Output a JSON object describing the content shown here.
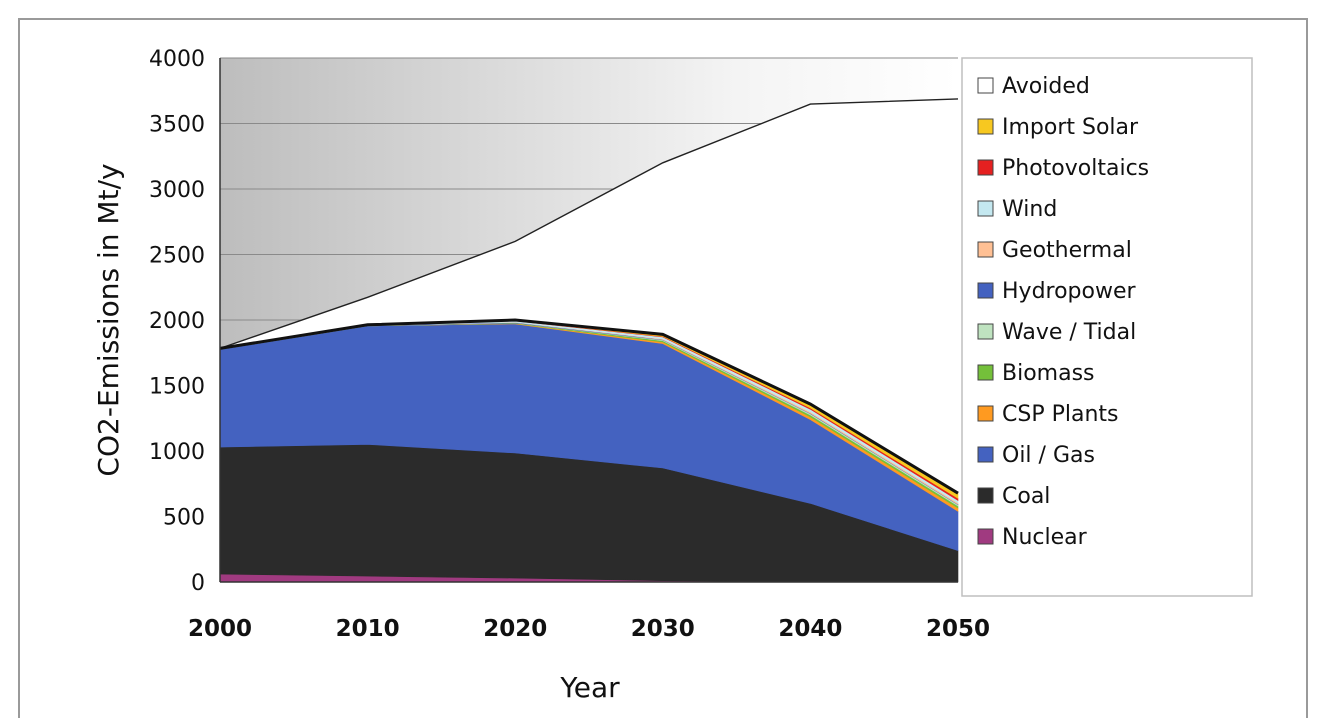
{
  "chart_data": {
    "type": "area",
    "title": "",
    "xlabel": "Year",
    "ylabel": "CO2-Emissions in Mt/y",
    "x": [
      2000,
      2010,
      2020,
      2030,
      2040,
      2050
    ],
    "xlim": [
      2000,
      2050
    ],
    "ylim": [
      0,
      4000
    ],
    "y_ticks": [
      0,
      500,
      1000,
      1500,
      2000,
      2500,
      3000,
      3500,
      4000
    ],
    "grid": true,
    "legend_position": "right",
    "stacked": true,
    "series": [
      {
        "name": "Nuclear",
        "color": "#a03a80",
        "values": [
          60,
          45,
          30,
          10,
          0,
          0
        ]
      },
      {
        "name": "Coal",
        "color": "#2b2b2b",
        "values": [
          970,
          1005,
          955,
          860,
          600,
          240
        ]
      },
      {
        "name": "Oil / Gas",
        "color": "#4462c0",
        "values": [
          745,
          905,
          985,
          950,
          640,
          300
        ]
      },
      {
        "name": "CSP Plants",
        "color": "#ff9a20",
        "values": [
          0,
          0,
          3,
          12,
          20,
          25
        ]
      },
      {
        "name": "Biomass",
        "color": "#74c03a",
        "values": [
          0,
          0,
          3,
          10,
          15,
          15
        ]
      },
      {
        "name": "Wave / Tidal",
        "color": "#bfe3c0",
        "values": [
          0,
          0,
          2,
          5,
          10,
          10
        ]
      },
      {
        "name": "Hydropower",
        "color": "#4462c0",
        "values": [
          3,
          3,
          3,
          3,
          3,
          3
        ]
      },
      {
        "name": "Geothermal",
        "color": "#ffc094",
        "values": [
          0,
          0,
          2,
          5,
          10,
          10
        ]
      },
      {
        "name": "Wind",
        "color": "#c4e8f0",
        "values": [
          5,
          5,
          10,
          15,
          20,
          20
        ]
      },
      {
        "name": "Photovoltaics",
        "color": "#e52020",
        "values": [
          0,
          0,
          2,
          5,
          10,
          15
        ]
      },
      {
        "name": "Import Solar",
        "color": "#f7c820",
        "values": [
          0,
          0,
          5,
          15,
          30,
          40
        ]
      },
      {
        "name": "Avoided",
        "color": "#ffffff",
        "values": [
          0,
          210,
          600,
          1310,
          2290,
          3010
        ]
      }
    ],
    "legend_order": [
      "Avoided",
      "Import Solar",
      "Photovoltaics",
      "Wind",
      "Geothermal",
      "Hydropower",
      "Wave / Tidal",
      "Biomass",
      "CSP Plants",
      "Oil / Gas",
      "Coal",
      "Nuclear"
    ]
  }
}
